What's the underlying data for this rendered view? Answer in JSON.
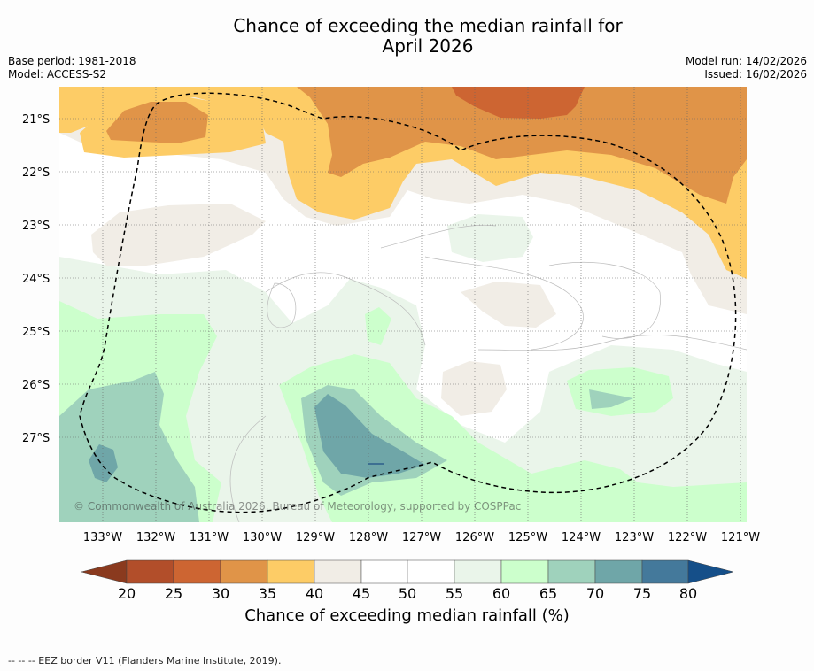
{
  "title": {
    "line1": "Chance of exceeding the median rainfall for",
    "line2": "April 2026"
  },
  "meta": {
    "base_period": "Base period: 1981-2018",
    "model": "Model: ACCESS-S2",
    "model_run": "Model run: 14/02/2026",
    "issued": "Issued: 16/02/2026"
  },
  "map": {
    "lat_labels": [
      "21°S",
      "22°S",
      "23°S",
      "24°S",
      "25°S",
      "26°S",
      "27°S"
    ],
    "lon_labels": [
      "133°W",
      "132°W",
      "131°W",
      "130°W",
      "129°W",
      "128°W",
      "127°W",
      "126°W",
      "125°W",
      "124°W",
      "123°W",
      "122°W",
      "121°W"
    ],
    "copyright": "© Commonwealth of Australia 2026, Bureau of Meteorology, supported by COSPPac"
  },
  "colorbar": {
    "ticks": [
      "20",
      "25",
      "30",
      "35",
      "40",
      "45",
      "50",
      "55",
      "60",
      "65",
      "70",
      "75",
      "80"
    ],
    "colors": {
      "below20": "#8a3a1e",
      "b20_25": "#b24e2a",
      "b25_30": "#cd6532",
      "b30_35": "#e09448",
      "b35_40": "#fdcc66",
      "b40_45": "#f1ede6",
      "b45_50": "#ffffff",
      "b50_55": "#ffffff",
      "b55_60": "#eaf5ea",
      "b60_65": "#ccffcc",
      "b65_70": "#9fd2bc",
      "b70_75": "#6fa6a8",
      "b75_80": "#44799b",
      "above80": "#154f89"
    },
    "label": "Chance of exceeding median rainfall (%)"
  },
  "footer": {
    "legend": "--  --  -- EEZ border V11 (Flanders Marine Institute, 2019)."
  }
}
